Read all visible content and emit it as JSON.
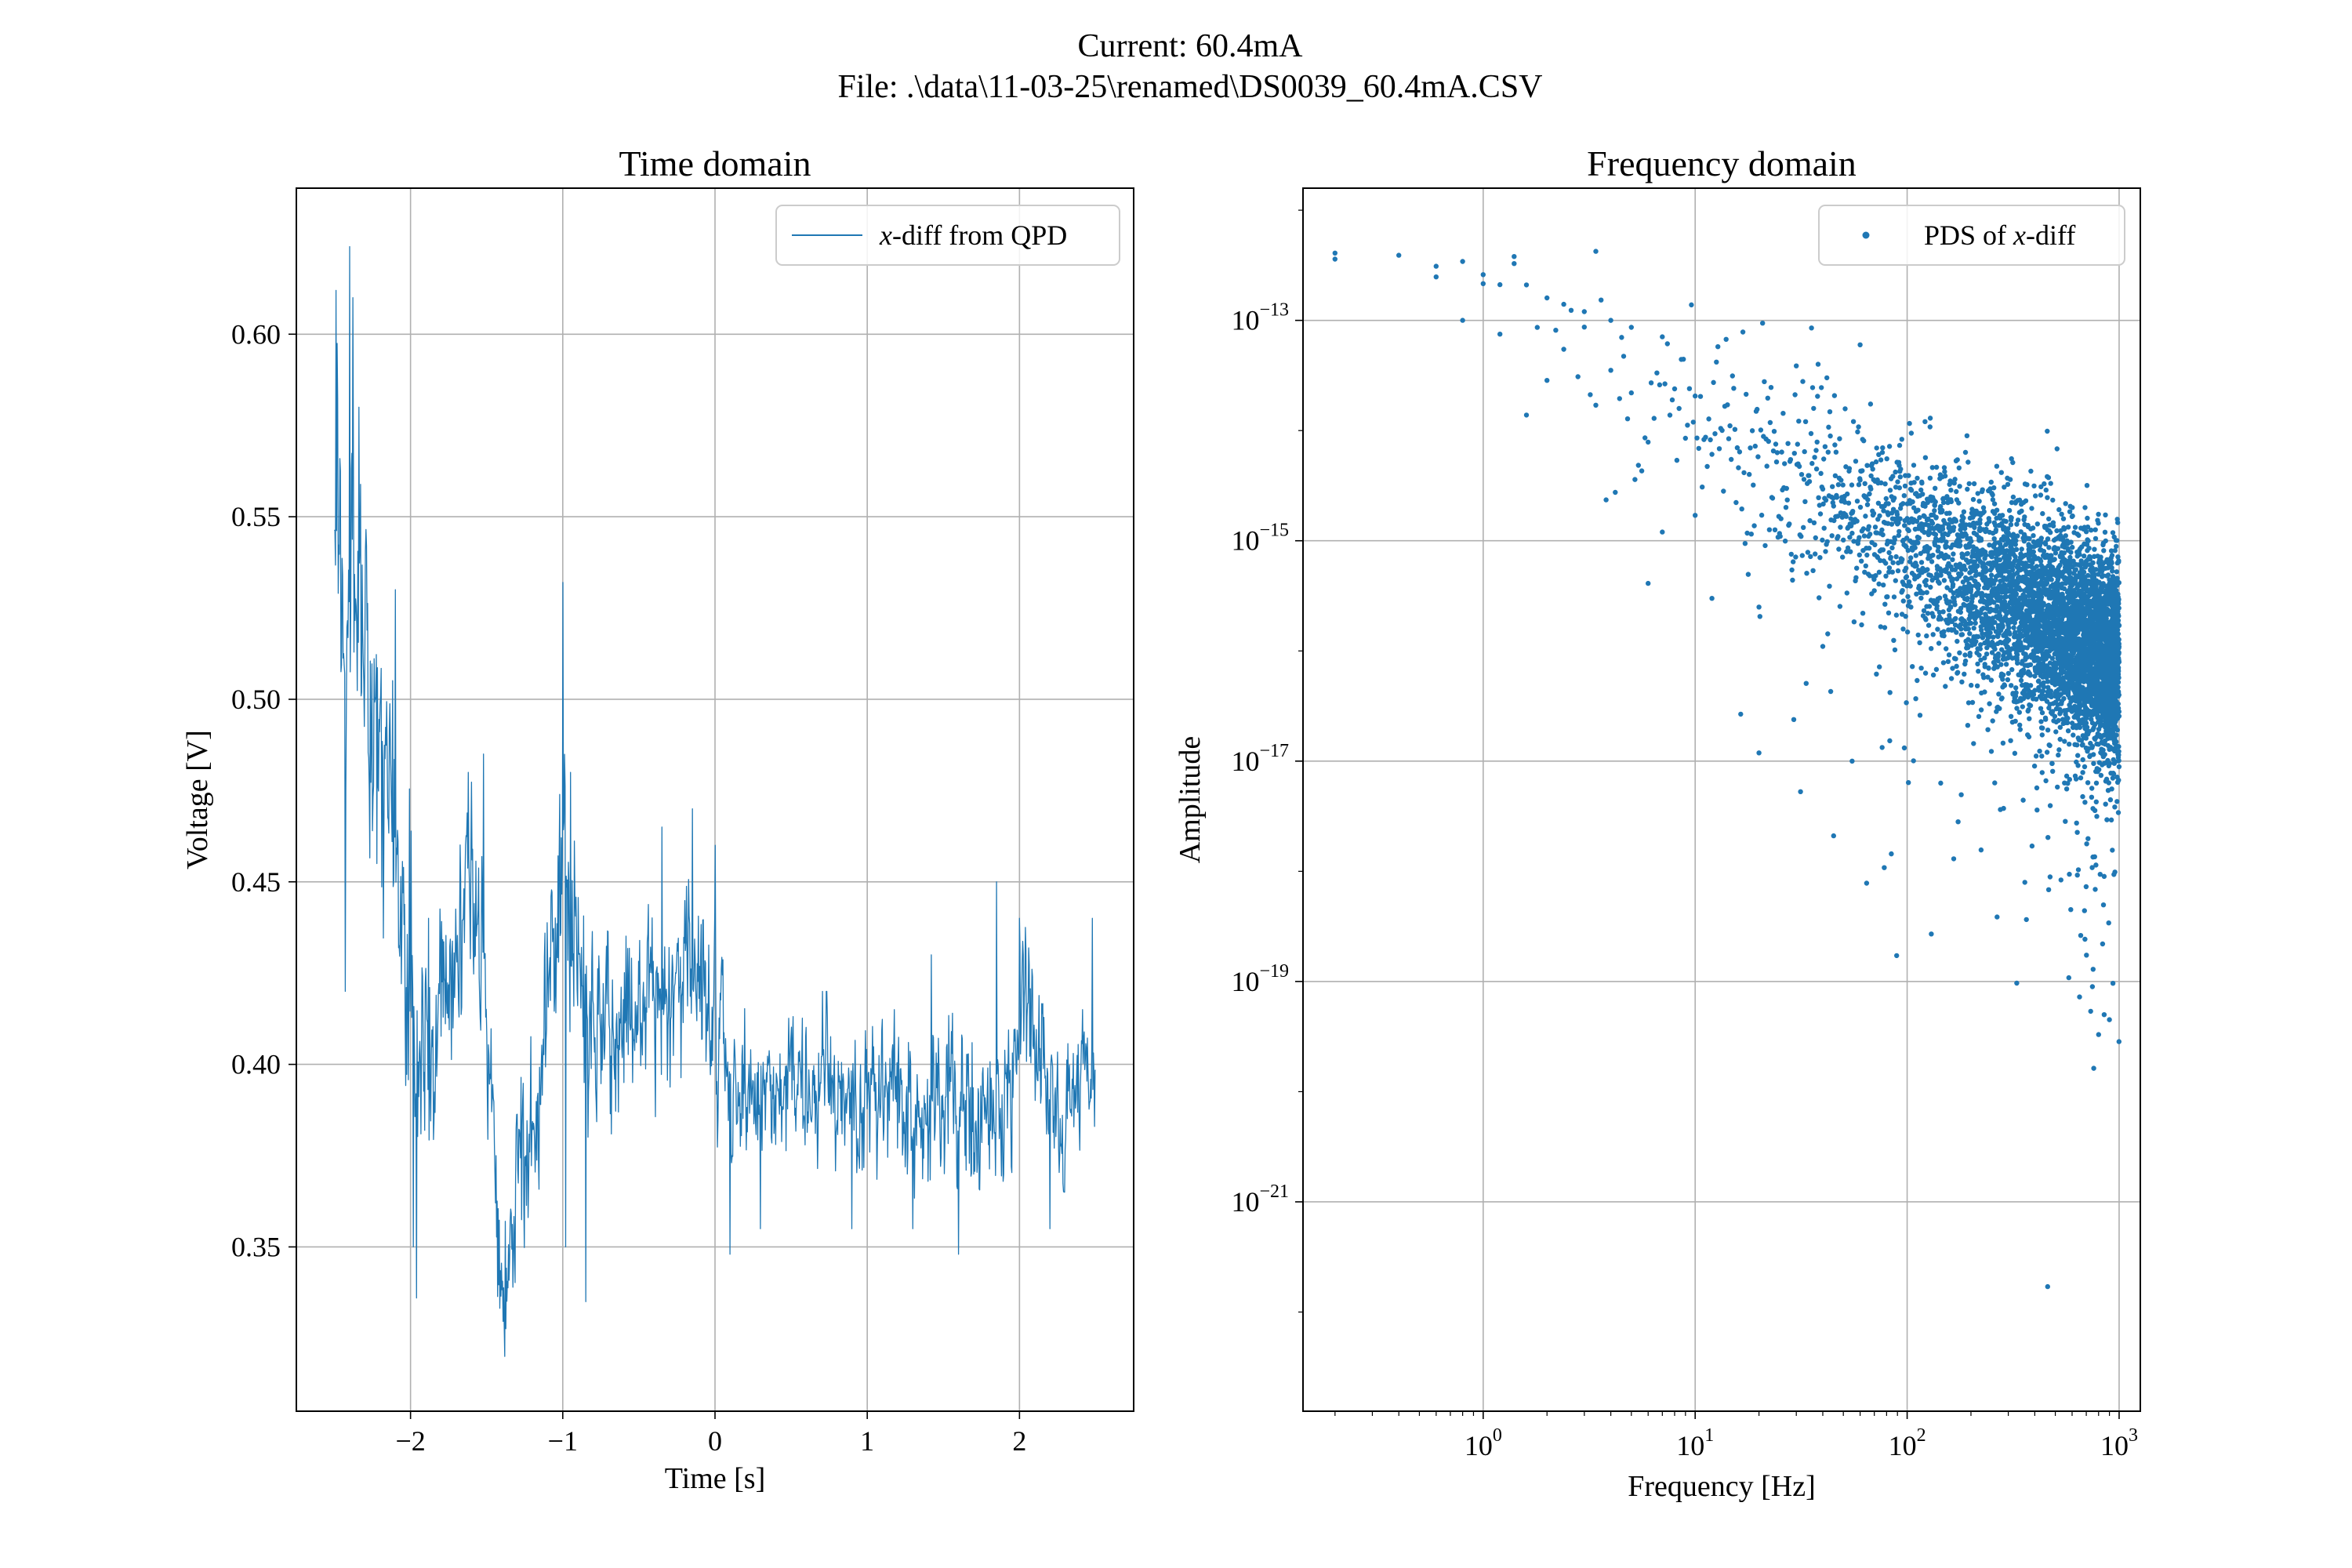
{
  "figure": {
    "suptitle_line1": "Current: 60.4mA",
    "suptitle_line2": "File: .\\data\\11-03-25\\renamed\\DS0039_60.4mA.CSV"
  },
  "chart_data": [
    {
      "type": "line",
      "title": "Time domain",
      "xlabel": "Time [s]",
      "ylabel": "Voltage [V]",
      "xlim": [
        -2.75,
        2.75
      ],
      "ylim": [
        0.305,
        0.64
      ],
      "xticks": [
        -2,
        -1,
        0,
        1,
        2
      ],
      "xtick_labels": [
        "−2",
        "−1",
        "0",
        "1",
        "2"
      ],
      "yticks": [
        0.35,
        0.4,
        0.45,
        0.5,
        0.55,
        0.6
      ],
      "ytick_labels": [
        "0.35",
        "0.40",
        "0.45",
        "0.50",
        "0.55",
        "0.60"
      ],
      "grid": true,
      "legend_position": "top-right",
      "series": [
        {
          "name_prefix": "x",
          "name_suffix": "-diff from QPD",
          "color": "#1f77b4",
          "x_range": [
            -2.5,
            2.5
          ],
          "envelope": {
            "x": [
              -2.5,
              -2.4,
              -2.3,
              -2.2,
              -2.1,
              -2.0,
              -1.95,
              -1.9,
              -1.8,
              -1.7,
              -1.6,
              -1.5,
              -1.45,
              -1.4,
              -1.35,
              -1.3,
              -1.2,
              -1.1,
              -1.05,
              -1.0,
              -0.95,
              -0.9,
              -0.8,
              -0.7,
              -0.6,
              -0.5,
              -0.4,
              -0.3,
              -0.2,
              -0.1,
              0.0,
              0.1,
              0.2,
              0.4,
              0.6,
              0.8,
              1.0,
              1.2,
              1.4,
              1.6,
              1.8,
              1.9,
              2.0,
              2.1,
              2.2,
              2.3,
              2.4,
              2.5
            ],
            "center": [
              0.55,
              0.53,
              0.51,
              0.485,
              0.455,
              0.43,
              0.39,
              0.4,
              0.42,
              0.43,
              0.44,
              0.41,
              0.38,
              0.34,
              0.345,
              0.37,
              0.38,
              0.42,
              0.44,
              0.455,
              0.44,
              0.42,
              0.41,
              0.405,
              0.41,
              0.415,
              0.415,
              0.415,
              0.425,
              0.43,
              0.41,
              0.395,
              0.39,
              0.39,
              0.395,
              0.395,
              0.39,
              0.39,
              0.385,
              0.39,
              0.385,
              0.39,
              0.41,
              0.41,
              0.39,
              0.39,
              0.39,
              0.39
            ],
            "half_width": [
              0.045,
              0.05,
              0.045,
              0.04,
              0.035,
              0.035,
              0.03,
              0.03,
              0.03,
              0.03,
              0.03,
              0.03,
              0.03,
              0.015,
              0.02,
              0.025,
              0.025,
              0.03,
              0.03,
              0.035,
              0.03,
              0.03,
              0.025,
              0.025,
              0.025,
              0.025,
              0.025,
              0.025,
              0.025,
              0.025,
              0.025,
              0.02,
              0.02,
              0.02,
              0.02,
              0.02,
              0.02,
              0.02,
              0.02,
              0.02,
              0.02,
              0.025,
              0.025,
              0.025,
              0.02,
              0.02,
              0.02,
              0.02
            ]
          },
          "spikes": [
            [
              -2.49,
              0.612
            ],
            [
              -2.43,
              0.42
            ],
            [
              -2.4,
              0.624
            ],
            [
              -2.38,
              0.61
            ],
            [
              -2.34,
              0.58
            ],
            [
              -2.22,
              0.455
            ],
            [
              -2.1,
              0.53
            ],
            [
              -1.98,
              0.35
            ],
            [
              -1.96,
              0.336
            ],
            [
              -1.88,
              0.44
            ],
            [
              -1.62,
              0.48
            ],
            [
              -1.52,
              0.485
            ],
            [
              -1.38,
              0.32
            ],
            [
              -1.0,
              0.532
            ],
            [
              -0.98,
              0.35
            ],
            [
              -0.95,
              0.48
            ],
            [
              -0.85,
              0.335
            ],
            [
              -0.35,
              0.465
            ],
            [
              -0.15,
              0.47
            ],
            [
              0.0,
              0.46
            ],
            [
              0.1,
              0.348
            ],
            [
              0.3,
              0.355
            ],
            [
              0.9,
              0.355
            ],
            [
              1.3,
              0.355
            ],
            [
              1.42,
              0.43
            ],
            [
              1.6,
              0.348
            ],
            [
              1.85,
              0.45
            ],
            [
              2.0,
              0.44
            ],
            [
              2.2,
              0.355
            ],
            [
              2.48,
              0.44
            ]
          ]
        }
      ]
    },
    {
      "type": "scatter",
      "title": "Frequency domain",
      "xlabel": "Frequency [Hz]",
      "ylabel": "Amplitude",
      "x_scale": "log",
      "y_scale": "log",
      "xlim_exp": [
        -0.85,
        3.1
      ],
      "ylim_exp": [
        -22.9,
        -11.8
      ],
      "xticks_exp": [
        0,
        1,
        2,
        3
      ],
      "yticks_exp": [
        -21,
        -19,
        -17,
        -15,
        -13
      ],
      "tick_base": "10",
      "xtick_exp_labels": [
        "0",
        "1",
        "2",
        "3"
      ],
      "ytick_exp_labels": [
        "−21",
        "−19",
        "−17",
        "−15",
        "−13"
      ],
      "grid": true,
      "legend_position": "top-right",
      "series": [
        {
          "name_prefix": "PDS of ",
          "name_italic": "x",
          "name_suffix": "-diff",
          "color": "#1f77b4",
          "f_min": 0.2,
          "f_max": 1000,
          "n_points": 5000,
          "trend_log_amplitude_at_1Hz": -12.8,
          "trend_slope": -1.1,
          "floor_log_amplitude": -16.3,
          "points": [
            [
              0.2,
              3.6e-13
            ],
            [
              0.4,
              3.9e-13
            ],
            [
              0.6,
              3.1e-13
            ],
            [
              0.8,
              1e-13
            ],
            [
              1.0,
              2.6e-13
            ],
            [
              1.2,
              7.5e-14
            ],
            [
              1.4,
              3.8e-13
            ],
            [
              1.6,
              2.1e-13
            ],
            [
              2.0,
              1.6e-13
            ],
            [
              2.4,
              1.4e-13
            ],
            [
              3.0,
              1.2e-13
            ],
            [
              3.4,
              1.7e-14
            ],
            [
              4.0,
              1e-13
            ],
            [
              4.5,
              7e-14
            ],
            [
              5.0,
              2.2e-14
            ],
            [
              6.0,
              4.1e-16
            ],
            [
              7.0,
              1.2e-15
            ],
            [
              10.0,
              1.7e-15
            ],
            [
              12.0,
              3e-16
            ],
            [
              20.0,
              2.5e-16
            ],
            [
              40.0,
              1.1e-16
            ],
            [
              45.0,
              2.1e-18
            ],
            [
              55.0,
              1e-17
            ],
            [
              60.0,
              6e-14
            ],
            [
              130.0,
              2.7e-19
            ],
            [
              460.0,
              1.7e-22
            ],
            [
              800.0,
              3.3e-20
            ],
            [
              850.0,
              5e-20
            ],
            [
              900.0,
              4.5e-20
            ]
          ]
        }
      ]
    }
  ]
}
